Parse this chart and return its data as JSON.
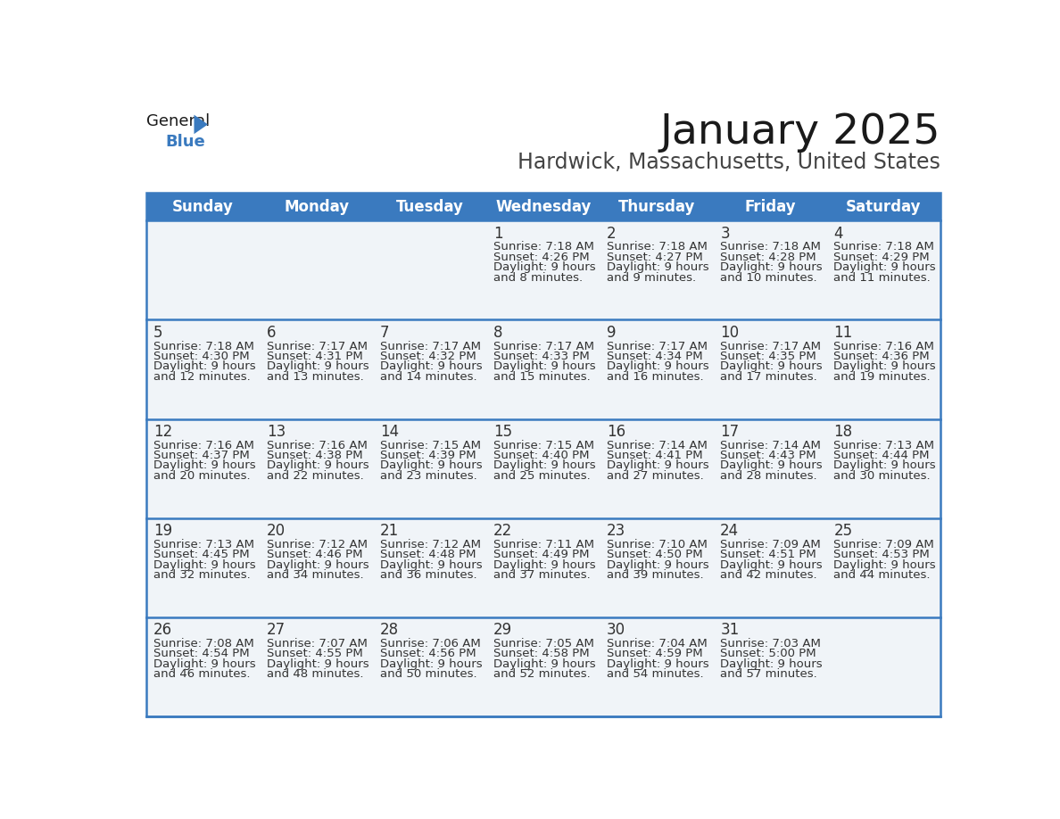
{
  "title": "January 2025",
  "subtitle": "Hardwick, Massachusetts, United States",
  "header_bg_color": "#3a7abf",
  "header_text_color": "#ffffff",
  "cell_bg_color": "#f0f4f8",
  "row_border_color": "#3a7abf",
  "text_color": "#333333",
  "days_of_week": [
    "Sunday",
    "Monday",
    "Tuesday",
    "Wednesday",
    "Thursday",
    "Friday",
    "Saturday"
  ],
  "calendar_data": [
    [
      {
        "day": "",
        "sunrise": "",
        "sunset": "",
        "daylight": ""
      },
      {
        "day": "",
        "sunrise": "",
        "sunset": "",
        "daylight": ""
      },
      {
        "day": "",
        "sunrise": "",
        "sunset": "",
        "daylight": ""
      },
      {
        "day": "1",
        "sunrise": "7:18 AM",
        "sunset": "4:26 PM",
        "daylight": "9 hours and 8 minutes."
      },
      {
        "day": "2",
        "sunrise": "7:18 AM",
        "sunset": "4:27 PM",
        "daylight": "9 hours and 9 minutes."
      },
      {
        "day": "3",
        "sunrise": "7:18 AM",
        "sunset": "4:28 PM",
        "daylight": "9 hours and 10 minutes."
      },
      {
        "day": "4",
        "sunrise": "7:18 AM",
        "sunset": "4:29 PM",
        "daylight": "9 hours and 11 minutes."
      }
    ],
    [
      {
        "day": "5",
        "sunrise": "7:18 AM",
        "sunset": "4:30 PM",
        "daylight": "9 hours and 12 minutes."
      },
      {
        "day": "6",
        "sunrise": "7:17 AM",
        "sunset": "4:31 PM",
        "daylight": "9 hours and 13 minutes."
      },
      {
        "day": "7",
        "sunrise": "7:17 AM",
        "sunset": "4:32 PM",
        "daylight": "9 hours and 14 minutes."
      },
      {
        "day": "8",
        "sunrise": "7:17 AM",
        "sunset": "4:33 PM",
        "daylight": "9 hours and 15 minutes."
      },
      {
        "day": "9",
        "sunrise": "7:17 AM",
        "sunset": "4:34 PM",
        "daylight": "9 hours and 16 minutes."
      },
      {
        "day": "10",
        "sunrise": "7:17 AM",
        "sunset": "4:35 PM",
        "daylight": "9 hours and 17 minutes."
      },
      {
        "day": "11",
        "sunrise": "7:16 AM",
        "sunset": "4:36 PM",
        "daylight": "9 hours and 19 minutes."
      }
    ],
    [
      {
        "day": "12",
        "sunrise": "7:16 AM",
        "sunset": "4:37 PM",
        "daylight": "9 hours and 20 minutes."
      },
      {
        "day": "13",
        "sunrise": "7:16 AM",
        "sunset": "4:38 PM",
        "daylight": "9 hours and 22 minutes."
      },
      {
        "day": "14",
        "sunrise": "7:15 AM",
        "sunset": "4:39 PM",
        "daylight": "9 hours and 23 minutes."
      },
      {
        "day": "15",
        "sunrise": "7:15 AM",
        "sunset": "4:40 PM",
        "daylight": "9 hours and 25 minutes."
      },
      {
        "day": "16",
        "sunrise": "7:14 AM",
        "sunset": "4:41 PM",
        "daylight": "9 hours and 27 minutes."
      },
      {
        "day": "17",
        "sunrise": "7:14 AM",
        "sunset": "4:43 PM",
        "daylight": "9 hours and 28 minutes."
      },
      {
        "day": "18",
        "sunrise": "7:13 AM",
        "sunset": "4:44 PM",
        "daylight": "9 hours and 30 minutes."
      }
    ],
    [
      {
        "day": "19",
        "sunrise": "7:13 AM",
        "sunset": "4:45 PM",
        "daylight": "9 hours and 32 minutes."
      },
      {
        "day": "20",
        "sunrise": "7:12 AM",
        "sunset": "4:46 PM",
        "daylight": "9 hours and 34 minutes."
      },
      {
        "day": "21",
        "sunrise": "7:12 AM",
        "sunset": "4:48 PM",
        "daylight": "9 hours and 36 minutes."
      },
      {
        "day": "22",
        "sunrise": "7:11 AM",
        "sunset": "4:49 PM",
        "daylight": "9 hours and 37 minutes."
      },
      {
        "day": "23",
        "sunrise": "7:10 AM",
        "sunset": "4:50 PM",
        "daylight": "9 hours and 39 minutes."
      },
      {
        "day": "24",
        "sunrise": "7:09 AM",
        "sunset": "4:51 PM",
        "daylight": "9 hours and 42 minutes."
      },
      {
        "day": "25",
        "sunrise": "7:09 AM",
        "sunset": "4:53 PM",
        "daylight": "9 hours and 44 minutes."
      }
    ],
    [
      {
        "day": "26",
        "sunrise": "7:08 AM",
        "sunset": "4:54 PM",
        "daylight": "9 hours and 46 minutes."
      },
      {
        "day": "27",
        "sunrise": "7:07 AM",
        "sunset": "4:55 PM",
        "daylight": "9 hours and 48 minutes."
      },
      {
        "day": "28",
        "sunrise": "7:06 AM",
        "sunset": "4:56 PM",
        "daylight": "9 hours and 50 minutes."
      },
      {
        "day": "29",
        "sunrise": "7:05 AM",
        "sunset": "4:58 PM",
        "daylight": "9 hours and 52 minutes."
      },
      {
        "day": "30",
        "sunrise": "7:04 AM",
        "sunset": "4:59 PM",
        "daylight": "9 hours and 54 minutes."
      },
      {
        "day": "31",
        "sunrise": "7:03 AM",
        "sunset": "5:00 PM",
        "daylight": "9 hours and 57 minutes."
      },
      {
        "day": "",
        "sunrise": "",
        "sunset": "",
        "daylight": ""
      }
    ]
  ],
  "title_fontsize": 34,
  "subtitle_fontsize": 17,
  "header_fontsize": 12,
  "day_fontsize": 12,
  "info_fontsize": 9.5
}
